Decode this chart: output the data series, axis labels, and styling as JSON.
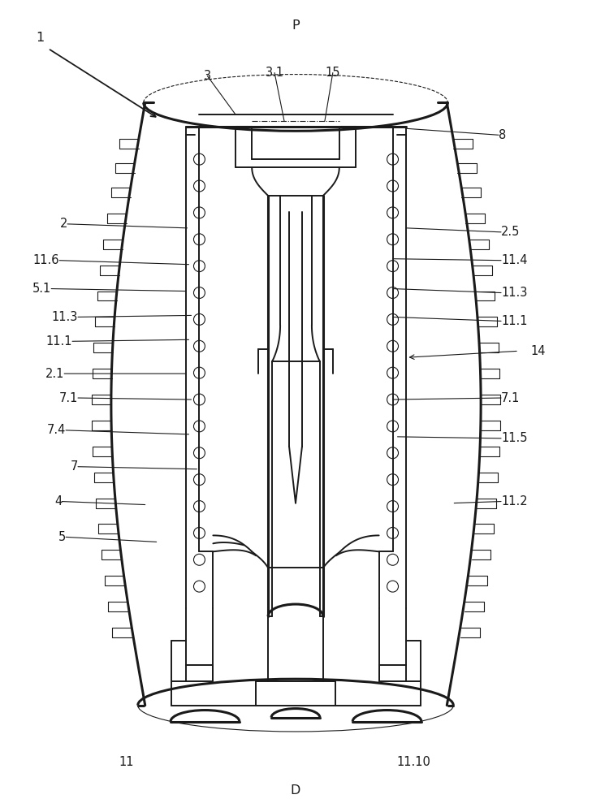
{
  "bg_color": "#ffffff",
  "line_color": "#1a1a1a",
  "lw_main": 1.4,
  "lw_thick": 2.2,
  "lw_thin": 0.8,
  "lw_med": 1.1,
  "label_fontsize": 10.5
}
